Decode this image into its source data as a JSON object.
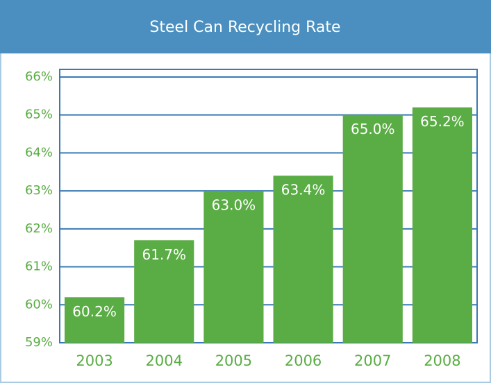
{
  "chart_data": {
    "type": "bar",
    "title": "Steel Can Recycling Rate",
    "categories": [
      "2003",
      "2004",
      "2005",
      "2006",
      "2007",
      "2008"
    ],
    "values": [
      60.2,
      61.7,
      63.0,
      63.4,
      65.0,
      65.2
    ],
    "value_labels": [
      "60.2%",
      "61.7%",
      "63.0%",
      "63.4%",
      "65.0%",
      "65.2%"
    ],
    "color": "#5aac44",
    "ylim": [
      59,
      66.2
    ],
    "yticks": [
      {
        "value": 59,
        "label": "59%"
      },
      {
        "value": 60,
        "label": "60%"
      },
      {
        "value": 61,
        "label": "61%"
      },
      {
        "value": 62,
        "label": "62%"
      },
      {
        "value": 63,
        "label": "63%"
      },
      {
        "value": 64,
        "label": "64%"
      },
      {
        "value": 65,
        "label": "65%"
      },
      {
        "value": 66,
        "label": "66%"
      }
    ],
    "grid": true
  }
}
